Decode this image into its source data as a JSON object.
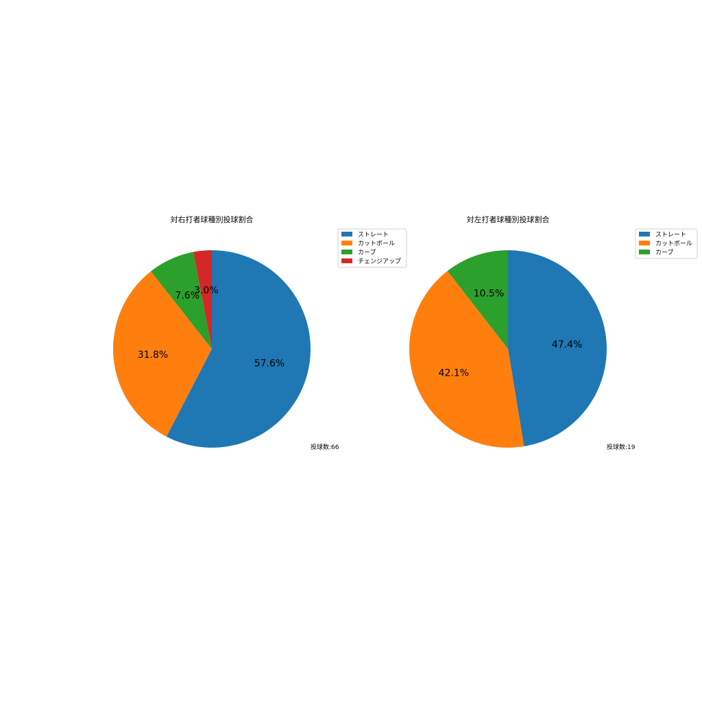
{
  "chart_data": [
    {
      "type": "pie",
      "title": "対右打者球種別投球割合",
      "categories": [
        "ストレート",
        "カットボール",
        "カーブ",
        "チェンジアップ"
      ],
      "values": [
        57.6,
        31.8,
        7.6,
        3.0
      ],
      "labels": [
        "57.6%",
        "31.8%",
        "7.6%",
        "3.0%"
      ],
      "colors": [
        "#1f77b4",
        "#ff7f0e",
        "#2ca02c",
        "#d62728"
      ],
      "start_angle": 90,
      "direction": "clockwise",
      "legend_position": "upper-right",
      "annotation": "投球数:66"
    },
    {
      "type": "pie",
      "title": "対左打者球種別投球割合",
      "categories": [
        "ストレート",
        "カットボール",
        "カーブ"
      ],
      "values": [
        47.4,
        42.1,
        10.5
      ],
      "labels": [
        "47.4%",
        "42.1%",
        "10.5%"
      ],
      "colors": [
        "#1f77b4",
        "#ff7f0e",
        "#2ca02c"
      ],
      "start_angle": 90,
      "direction": "clockwise",
      "legend_position": "upper-right",
      "annotation": "投球数:19"
    }
  ]
}
